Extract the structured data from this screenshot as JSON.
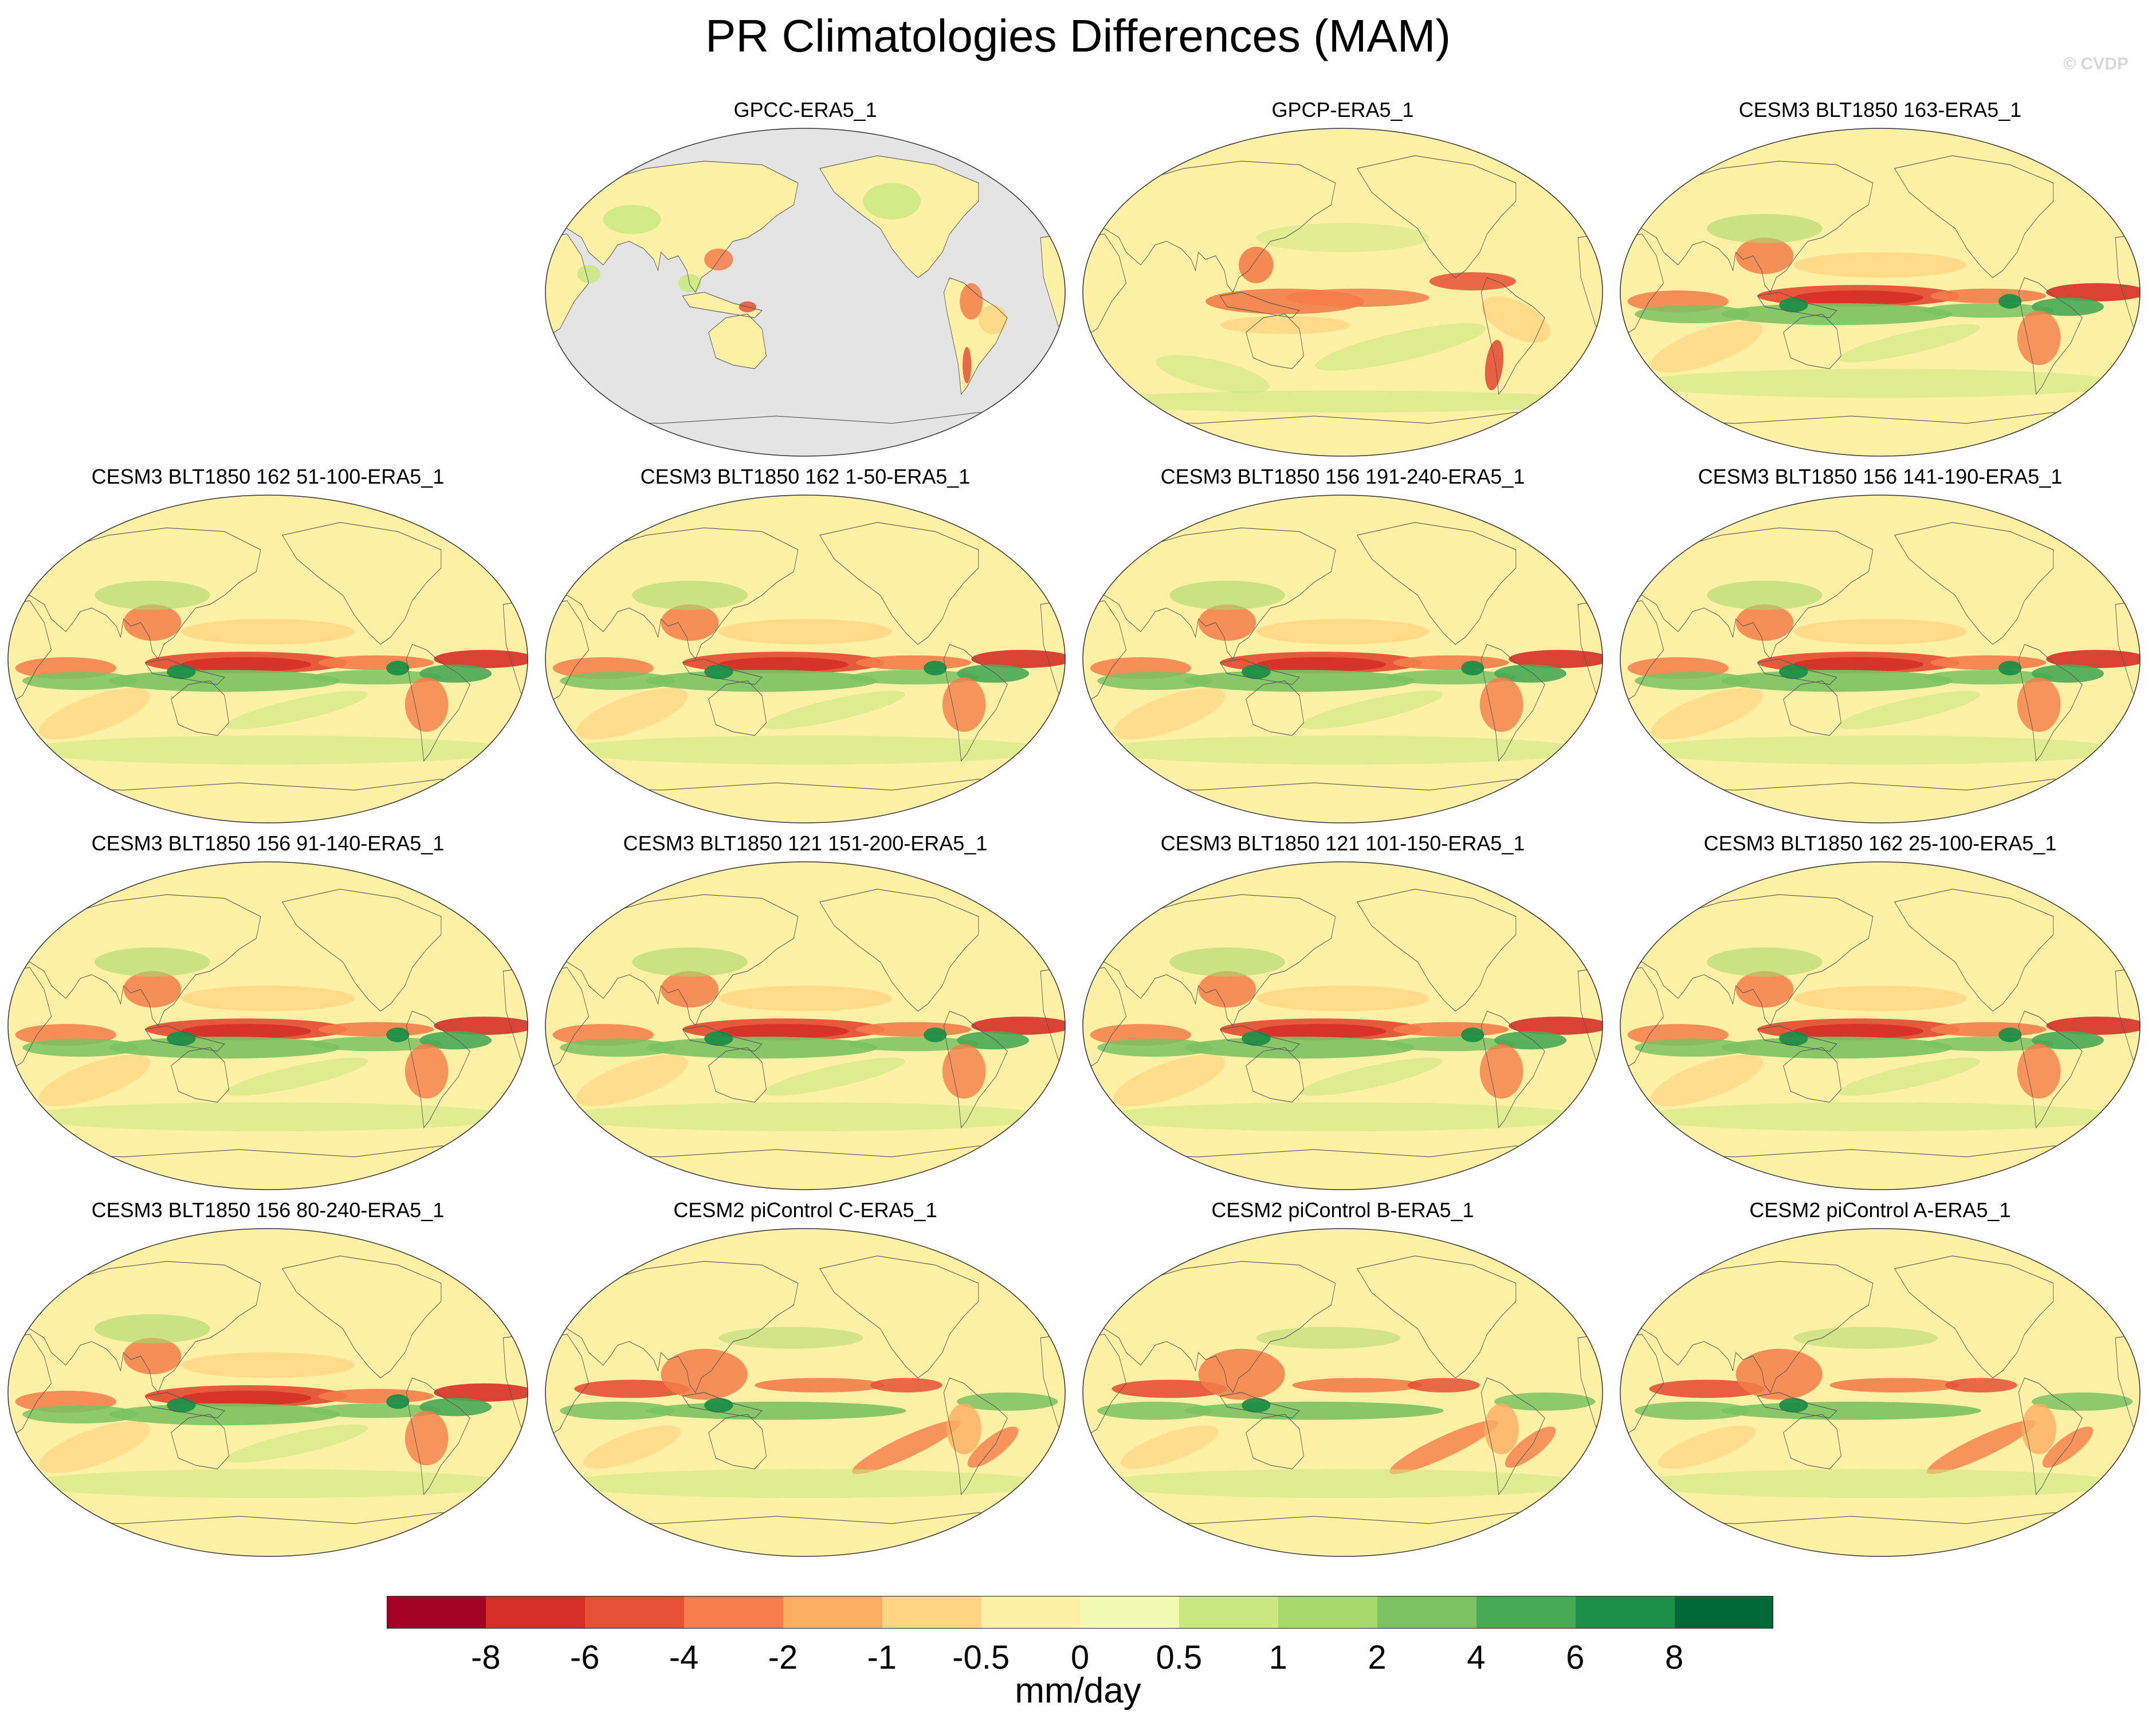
{
  "title": "PR Climatologies Differences (MAM)",
  "watermark": "© CVDP",
  "panels": [
    {
      "label": "GPCC-ERA5_1",
      "style": "obs_land"
    },
    {
      "label": "GPCP-ERA5_1",
      "style": "obs"
    },
    {
      "label": "CESM3 BLT1850 163-ERA5_1",
      "style": "cesm3"
    },
    {
      "label": "CESM3 BLT1850 162 51-100-ERA5_1",
      "style": "cesm3"
    },
    {
      "label": "CESM3 BLT1850 162 1-50-ERA5_1",
      "style": "cesm3"
    },
    {
      "label": "CESM3 BLT1850 156 191-240-ERA5_1",
      "style": "cesm3"
    },
    {
      "label": "CESM3 BLT1850 156 141-190-ERA5_1",
      "style": "cesm3"
    },
    {
      "label": "CESM3 BLT1850 156 91-140-ERA5_1",
      "style": "cesm3"
    },
    {
      "label": "CESM3 BLT1850 121 151-200-ERA5_1",
      "style": "cesm3"
    },
    {
      "label": "CESM3 BLT1850 121 101-150-ERA5_1",
      "style": "cesm3"
    },
    {
      "label": "CESM3 BLT1850 162 25-100-ERA5_1",
      "style": "cesm3"
    },
    {
      "label": "CESM3 BLT1850 156 80-240-ERA5_1",
      "style": "cesm3"
    },
    {
      "label": "CESM2 piControl C-ERA5_1",
      "style": "cesm2"
    },
    {
      "label": "CESM2 piControl B-ERA5_1",
      "style": "cesm2"
    },
    {
      "label": "CESM2 piControl A-ERA5_1",
      "style": "cesm2"
    }
  ],
  "colorbar": {
    "colors": [
      "#a50026",
      "#d62f27",
      "#e65035",
      "#f47d4a",
      "#fbae61",
      "#fed582",
      "#fef1a6",
      "#f2f9b0",
      "#c9e880",
      "#a6d86a",
      "#7ac262",
      "#48a954",
      "#1c8f48",
      "#006837"
    ],
    "ticks": [
      "-8",
      "-6",
      "-4",
      "-2",
      "-1",
      "-0.5",
      "0",
      "0.5",
      "1",
      "2",
      "4",
      "6",
      "8"
    ],
    "units": "mm/day"
  }
}
